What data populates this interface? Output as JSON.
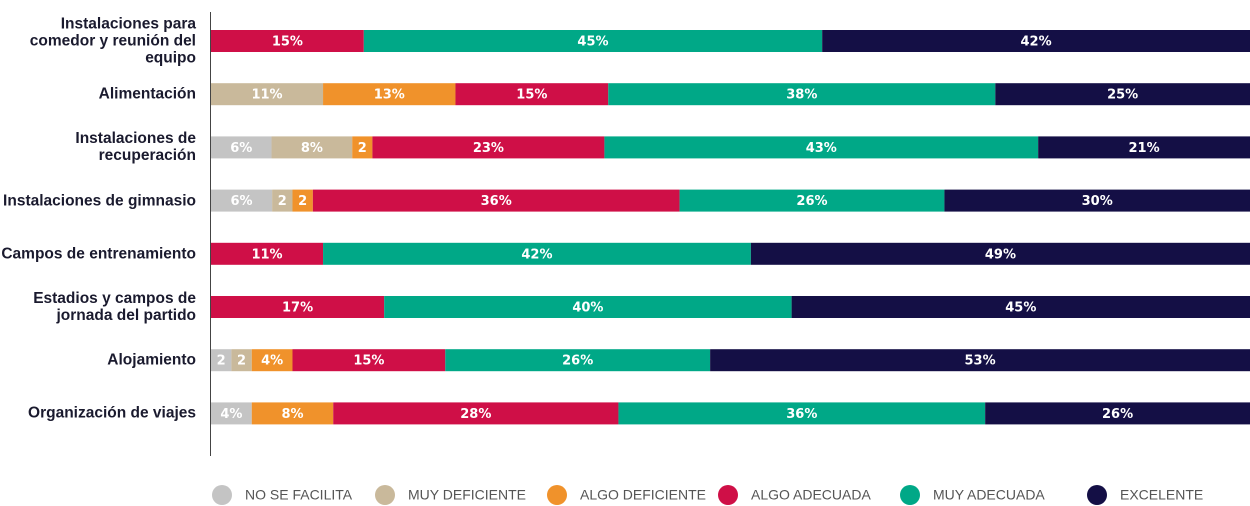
{
  "chart_data": {
    "type": "stacked-bar-horizontal",
    "categories": [
      "Instalaciones para comedor y reunión del equipo",
      "Alimentación",
      "Instalaciones de recuperación",
      "Instalaciones de gimnasio",
      "Campos de entrenamiento",
      "Estadios y campos de jornada del partido",
      "Alojamiento",
      "Organización de viajes"
    ],
    "series": [
      {
        "name": "NO SE FACILITA",
        "color": "#c4c4c4",
        "values": [
          null,
          null,
          6,
          6,
          null,
          null,
          2,
          4
        ],
        "value_labels": [
          null,
          null,
          "6%",
          "6%",
          null,
          null,
          "2",
          "4%"
        ]
      },
      {
        "name": "MUY DEFICIENTE",
        "color": "#c9b99b",
        "values": [
          null,
          11,
          8,
          2,
          null,
          null,
          2,
          null
        ],
        "value_labels": [
          null,
          "11%",
          "8%",
          "2",
          null,
          null,
          "2",
          null
        ]
      },
      {
        "name": "ALGO DEFICIENTE",
        "color": "#f0922b",
        "values": [
          null,
          13,
          2,
          2,
          null,
          null,
          4,
          8
        ],
        "value_labels": [
          null,
          "13%",
          "2",
          "2",
          null,
          null,
          "4%",
          "8%"
        ]
      },
      {
        "name": "ALGO ADECUADA",
        "color": "#cf0f47",
        "values": [
          15,
          15,
          23,
          36,
          11,
          17,
          15,
          28
        ],
        "value_labels": [
          "15%",
          "15%",
          "23%",
          "36%",
          "11%",
          "17%",
          "15%",
          "28%"
        ]
      },
      {
        "name": "MUY ADECUADA",
        "color": "#00a887",
        "values": [
          45,
          38,
          43,
          26,
          42,
          40,
          26,
          36
        ],
        "value_labels": [
          "45%",
          "38%",
          "43%",
          "26%",
          "42%",
          "40%",
          "26%",
          "36%"
        ]
      },
      {
        "name": "EXCELENTE",
        "color": "#140f45",
        "values": [
          42,
          25,
          21,
          30,
          49,
          45,
          53,
          26
        ],
        "value_labels": [
          "42%",
          "25%",
          "21%",
          "30%",
          "49%",
          "45%",
          "53%",
          "26%"
        ]
      }
    ]
  }
}
